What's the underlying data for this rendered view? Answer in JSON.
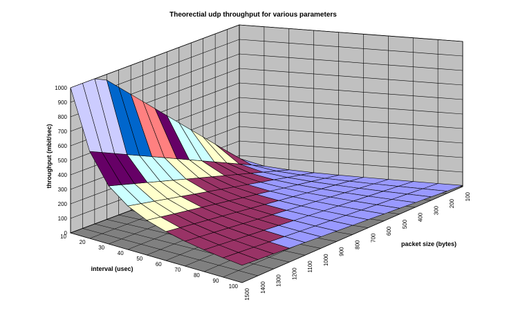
{
  "chart_data": {
    "type": "surface",
    "title": "Theorectial udp throughput for various parameters",
    "xlabel": "interval (usec)",
    "ylabel": "packet size (bytes)",
    "zlabel": "throughput (mbit/sec)",
    "interval_usec": [
      10,
      20,
      30,
      40,
      50,
      60,
      70,
      80,
      90,
      100
    ],
    "packet_size_bytes": [
      1500,
      1400,
      1300,
      1200,
      1100,
      1000,
      900,
      800,
      700,
      600,
      500,
      400,
      300,
      200,
      100
    ],
    "z_ticks": [
      0,
      100,
      200,
      300,
      400,
      500,
      600,
      700,
      800,
      900,
      1000
    ],
    "zlim": [
      0,
      1000
    ],
    "grid": true,
    "legend": false,
    "value_rule": "throughput = min(1000, packet_size * 8 / interval)",
    "bands": [
      {
        "range": [
          0,
          100
        ],
        "color": "#9999ff"
      },
      {
        "range": [
          100,
          200
        ],
        "color": "#993366"
      },
      {
        "range": [
          200,
          300
        ],
        "color": "#ffffcc"
      },
      {
        "range": [
          300,
          400
        ],
        "color": "#ccffff"
      },
      {
        "range": [
          400,
          500
        ],
        "color": "#660066"
      },
      {
        "range": [
          500,
          600
        ],
        "color": "#ff8080"
      },
      {
        "range": [
          600,
          700
        ],
        "color": "#0066cc"
      },
      {
        "range": [
          700,
          800
        ],
        "color": "#ccccff"
      },
      {
        "range": [
          800,
          900
        ],
        "color": "#000080"
      },
      {
        "range": [
          900,
          1000
        ],
        "color": "#ff00ff"
      }
    ],
    "wall_color": "#c0c0c0",
    "floor_color": "#808080"
  }
}
